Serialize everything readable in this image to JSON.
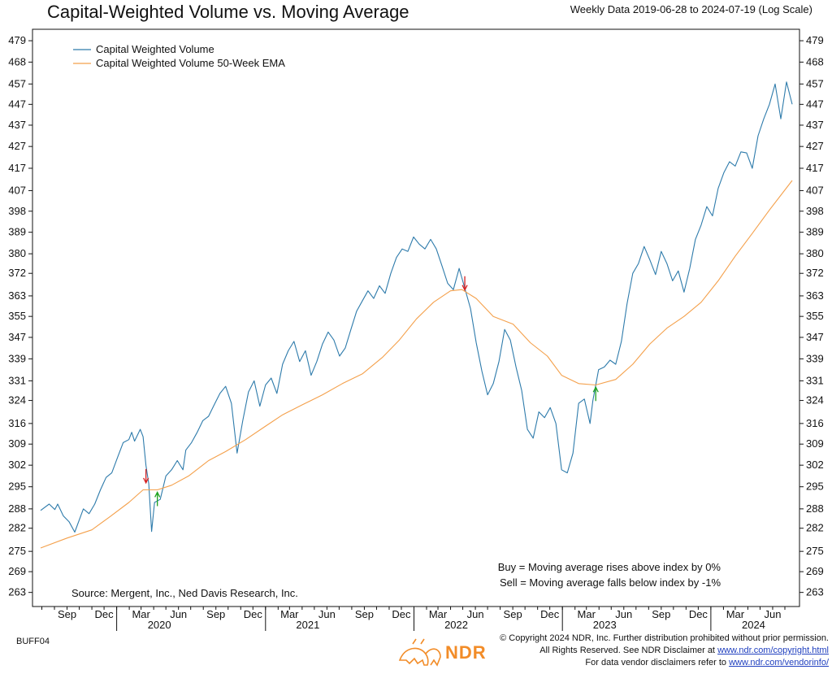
{
  "header": {
    "title": "Capital-Weighted Volume vs. Moving Average",
    "subtitle": "Weekly Data 2019-06-28 to 2024-07-19 (Log Scale)"
  },
  "chart_data": {
    "type": "line",
    "y_scale": "log",
    "ylim": [
      259,
      485
    ],
    "xlim": [
      "2019-06-28",
      "2024-07-19"
    ],
    "y_ticks": [
      263,
      269,
      275,
      282,
      288,
      295,
      302,
      309,
      316,
      324,
      331,
      339,
      347,
      355,
      363,
      372,
      380,
      389,
      398,
      407,
      417,
      427,
      437,
      447,
      457,
      468,
      479
    ],
    "x_month_ticks": [
      {
        "date": "2019-09-01",
        "label": "Sep"
      },
      {
        "date": "2019-12-01",
        "label": "Dec"
      },
      {
        "date": "2020-03-01",
        "label": "Mar"
      },
      {
        "date": "2020-06-01",
        "label": "Jun"
      },
      {
        "date": "2020-09-01",
        "label": "Sep"
      },
      {
        "date": "2020-12-01",
        "label": "Dec"
      },
      {
        "date": "2021-03-01",
        "label": "Mar"
      },
      {
        "date": "2021-06-01",
        "label": "Jun"
      },
      {
        "date": "2021-09-01",
        "label": "Sep"
      },
      {
        "date": "2021-12-01",
        "label": "Dec"
      },
      {
        "date": "2022-03-01",
        "label": "Mar"
      },
      {
        "date": "2022-06-01",
        "label": "Jun"
      },
      {
        "date": "2022-09-01",
        "label": "Sep"
      },
      {
        "date": "2022-12-01",
        "label": "Dec"
      },
      {
        "date": "2023-03-01",
        "label": "Mar"
      },
      {
        "date": "2023-06-01",
        "label": "Jun"
      },
      {
        "date": "2023-09-01",
        "label": "Sep"
      },
      {
        "date": "2023-12-01",
        "label": "Dec"
      },
      {
        "date": "2024-03-01",
        "label": "Mar"
      },
      {
        "date": "2024-06-01",
        "label": "Jun"
      }
    ],
    "x_year_labels": [
      {
        "date": "2020-04-15",
        "label": "2020"
      },
      {
        "date": "2021-04-15",
        "label": "2021"
      },
      {
        "date": "2022-04-15",
        "label": "2022"
      },
      {
        "date": "2023-04-15",
        "label": "2023"
      },
      {
        "date": "2024-04-15",
        "label": "2024"
      }
    ],
    "year_boundaries": [
      "2020-01-01",
      "2021-01-01",
      "2022-01-01",
      "2023-01-01",
      "2024-01-01"
    ],
    "series": [
      {
        "name": "Capital Weighted Volume",
        "color": "#2e7bab",
        "points": [
          [
            "2019-06-28",
            287.5
          ],
          [
            "2019-07-19",
            289.5
          ],
          [
            "2019-08-02",
            287.8
          ],
          [
            "2019-08-09",
            289.5
          ],
          [
            "2019-08-23",
            285.8
          ],
          [
            "2019-09-06",
            284.0
          ],
          [
            "2019-09-20",
            280.8
          ],
          [
            "2019-10-11",
            288.0
          ],
          [
            "2019-10-25",
            286.5
          ],
          [
            "2019-11-08",
            289.5
          ],
          [
            "2019-11-22",
            294.0
          ],
          [
            "2019-12-06",
            298.0
          ],
          [
            "2019-12-20",
            299.5
          ],
          [
            "2020-01-03",
            304.5
          ],
          [
            "2020-01-17",
            309.5
          ],
          [
            "2020-01-31",
            310.5
          ],
          [
            "2020-02-07",
            313.0
          ],
          [
            "2020-02-14",
            310.0
          ],
          [
            "2020-02-28",
            314.0
          ],
          [
            "2020-03-06",
            311.5
          ],
          [
            "2020-03-13",
            302.0
          ],
          [
            "2020-03-20",
            296.0
          ],
          [
            "2020-03-27",
            281.0
          ],
          [
            "2020-04-03",
            290.0
          ],
          [
            "2020-04-17",
            291.0
          ],
          [
            "2020-05-01",
            298.5
          ],
          [
            "2020-05-15",
            300.5
          ],
          [
            "2020-05-29",
            303.5
          ],
          [
            "2020-06-12",
            300.5
          ],
          [
            "2020-06-19",
            307.0
          ],
          [
            "2020-07-03",
            309.5
          ],
          [
            "2020-07-17",
            313.0
          ],
          [
            "2020-07-31",
            317.0
          ],
          [
            "2020-08-14",
            318.5
          ],
          [
            "2020-08-28",
            322.5
          ],
          [
            "2020-09-11",
            326.5
          ],
          [
            "2020-09-25",
            329.0
          ],
          [
            "2020-10-09",
            323.0
          ],
          [
            "2020-10-23",
            306.0
          ],
          [
            "2020-11-06",
            317.0
          ],
          [
            "2020-11-20",
            327.0
          ],
          [
            "2020-12-04",
            331.0
          ],
          [
            "2020-12-18",
            322.0
          ],
          [
            "2021-01-01",
            329.5
          ],
          [
            "2021-01-15",
            332.0
          ],
          [
            "2021-01-29",
            326.5
          ],
          [
            "2021-02-12",
            337.0
          ],
          [
            "2021-02-26",
            342.0
          ],
          [
            "2021-03-12",
            345.5
          ],
          [
            "2021-03-26",
            338.0
          ],
          [
            "2021-04-09",
            342.0
          ],
          [
            "2021-04-23",
            333.0
          ],
          [
            "2021-05-07",
            338.0
          ],
          [
            "2021-05-21",
            344.5
          ],
          [
            "2021-06-04",
            349.0
          ],
          [
            "2021-06-18",
            346.0
          ],
          [
            "2021-07-02",
            340.0
          ],
          [
            "2021-07-16",
            343.0
          ],
          [
            "2021-07-30",
            350.0
          ],
          [
            "2021-08-13",
            357.0
          ],
          [
            "2021-08-27",
            361.0
          ],
          [
            "2021-09-10",
            365.0
          ],
          [
            "2021-09-24",
            362.0
          ],
          [
            "2021-10-08",
            367.0
          ],
          [
            "2021-10-22",
            364.0
          ],
          [
            "2021-11-05",
            372.0
          ],
          [
            "2021-11-19",
            378.5
          ],
          [
            "2021-12-03",
            382.0
          ],
          [
            "2021-12-17",
            381.0
          ],
          [
            "2021-12-31",
            387.0
          ],
          [
            "2022-01-14",
            384.0
          ],
          [
            "2022-01-28",
            382.0
          ],
          [
            "2022-02-11",
            386.0
          ],
          [
            "2022-02-25",
            382.0
          ],
          [
            "2022-03-11",
            375.0
          ],
          [
            "2022-03-25",
            368.0
          ],
          [
            "2022-04-08",
            365.5
          ],
          [
            "2022-04-22",
            374.0
          ],
          [
            "2022-05-06",
            366.0
          ],
          [
            "2022-05-20",
            358.0
          ],
          [
            "2022-06-03",
            345.0
          ],
          [
            "2022-06-17",
            334.5
          ],
          [
            "2022-07-01",
            326.0
          ],
          [
            "2022-07-15",
            330.0
          ],
          [
            "2022-07-29",
            338.0
          ],
          [
            "2022-08-12",
            350.0
          ],
          [
            "2022-08-26",
            346.0
          ],
          [
            "2022-09-09",
            336.0
          ],
          [
            "2022-09-23",
            327.5
          ],
          [
            "2022-10-07",
            314.0
          ],
          [
            "2022-10-21",
            311.0
          ],
          [
            "2022-11-04",
            320.0
          ],
          [
            "2022-11-18",
            318.0
          ],
          [
            "2022-12-02",
            321.5
          ],
          [
            "2022-12-16",
            316.0
          ],
          [
            "2022-12-30",
            300.5
          ],
          [
            "2023-01-13",
            299.5
          ],
          [
            "2023-01-27",
            306.0
          ],
          [
            "2023-02-10",
            323.0
          ],
          [
            "2023-02-24",
            324.5
          ],
          [
            "2023-03-10",
            316.0
          ],
          [
            "2023-03-17",
            324.0
          ],
          [
            "2023-03-31",
            335.0
          ],
          [
            "2023-04-14",
            336.0
          ],
          [
            "2023-04-28",
            338.5
          ],
          [
            "2023-05-12",
            337.0
          ],
          [
            "2023-05-26",
            345.5
          ],
          [
            "2023-06-09",
            360.0
          ],
          [
            "2023-06-23",
            372.0
          ],
          [
            "2023-07-07",
            376.0
          ],
          [
            "2023-07-21",
            383.0
          ],
          [
            "2023-08-04",
            377.5
          ],
          [
            "2023-08-18",
            371.5
          ],
          [
            "2023-09-01",
            381.0
          ],
          [
            "2023-09-15",
            376.0
          ],
          [
            "2023-09-29",
            369.0
          ],
          [
            "2023-10-13",
            373.0
          ],
          [
            "2023-10-27",
            364.5
          ],
          [
            "2023-11-10",
            374.0
          ],
          [
            "2023-11-24",
            386.0
          ],
          [
            "2023-12-08",
            392.0
          ],
          [
            "2023-12-22",
            400.0
          ],
          [
            "2024-01-05",
            396.0
          ],
          [
            "2024-01-19",
            408.0
          ],
          [
            "2024-02-02",
            415.0
          ],
          [
            "2024-02-16",
            420.0
          ],
          [
            "2024-03-01",
            418.0
          ],
          [
            "2024-03-15",
            424.5
          ],
          [
            "2024-03-29",
            424.0
          ],
          [
            "2024-04-12",
            417.0
          ],
          [
            "2024-04-26",
            432.0
          ],
          [
            "2024-05-10",
            440.0
          ],
          [
            "2024-05-24",
            447.0
          ],
          [
            "2024-06-07",
            457.0
          ],
          [
            "2024-06-21",
            440.0
          ],
          [
            "2024-07-05",
            458.0
          ],
          [
            "2024-07-19",
            447.0
          ]
        ]
      },
      {
        "name": "Capital Weighted Volume 50-Week EMA",
        "color": "#f4a04b",
        "points": [
          [
            "2019-06-28",
            276.0
          ],
          [
            "2019-09-01",
            279.0
          ],
          [
            "2019-11-01",
            281.5
          ],
          [
            "2019-12-15",
            285.5
          ],
          [
            "2020-01-31",
            290.0
          ],
          [
            "2020-03-06",
            294.0
          ],
          [
            "2020-04-10",
            294.0
          ],
          [
            "2020-05-15",
            295.5
          ],
          [
            "2020-06-26",
            298.5
          ],
          [
            "2020-08-14",
            303.5
          ],
          [
            "2020-09-25",
            306.5
          ],
          [
            "2020-11-13",
            310.5
          ],
          [
            "2020-12-31",
            315.0
          ],
          [
            "2021-02-12",
            319.0
          ],
          [
            "2021-04-02",
            322.5
          ],
          [
            "2021-05-21",
            326.0
          ],
          [
            "2021-07-09",
            330.0
          ],
          [
            "2021-08-27",
            333.5
          ],
          [
            "2021-10-15",
            339.5
          ],
          [
            "2021-11-26",
            346.0
          ],
          [
            "2022-01-07",
            354.0
          ],
          [
            "2022-02-18",
            360.5
          ],
          [
            "2022-04-01",
            365.0
          ],
          [
            "2022-04-29",
            365.5
          ],
          [
            "2022-06-03",
            362.0
          ],
          [
            "2022-07-15",
            355.0
          ],
          [
            "2022-09-02",
            352.0
          ],
          [
            "2022-10-14",
            345.0
          ],
          [
            "2022-11-25",
            340.0
          ],
          [
            "2022-12-30",
            333.0
          ],
          [
            "2023-02-10",
            330.0
          ],
          [
            "2023-03-24",
            329.5
          ],
          [
            "2023-05-12",
            331.5
          ],
          [
            "2023-06-23",
            337.0
          ],
          [
            "2023-08-04",
            344.5
          ],
          [
            "2023-09-15",
            350.5
          ],
          [
            "2023-10-27",
            355.0
          ],
          [
            "2023-12-08",
            360.5
          ],
          [
            "2024-01-19",
            369.0
          ],
          [
            "2024-03-01",
            379.0
          ],
          [
            "2024-04-12",
            388.5
          ],
          [
            "2024-05-24",
            398.5
          ],
          [
            "2024-07-19",
            411.5
          ]
        ]
      }
    ],
    "signals": [
      {
        "type": "sell",
        "date": "2020-03-13",
        "value": 296.0,
        "color": "#d62020"
      },
      {
        "type": "buy",
        "date": "2020-04-10",
        "value": 293.5,
        "color": "#1fa31f"
      },
      {
        "type": "sell",
        "date": "2022-05-06",
        "value": 365.0,
        "color": "#d62020"
      },
      {
        "type": "buy",
        "date": "2023-03-24",
        "value": 329.0,
        "color": "#1fa31f"
      }
    ],
    "annotations": {
      "source": "Source:   Mergent, Inc., Ned Davis Research, Inc.",
      "buy_rule": "Buy = Moving average rises above index by 0%",
      "sell_rule": "Sell = Moving average falls below index by -1%"
    },
    "legend_position": "top-left",
    "grid": false
  },
  "footer": {
    "code": "BUFF04",
    "copyright_line1": "© Copyright 2024 NDR, Inc. Further distribution prohibited without prior permission.",
    "copyright_line2": "All Rights Reserved. See NDR Disclaimer at ",
    "copyright_link1": "www.ndr.com/copyright.html",
    "copyright_line3": "For data vendor disclaimers refer to ",
    "copyright_link2": "www.ndr.com/vendorinfo/",
    "logo_text": "NDR",
    "logo_icon": "bull-bear-logo-icon",
    "brand_color": "#f28c28"
  }
}
